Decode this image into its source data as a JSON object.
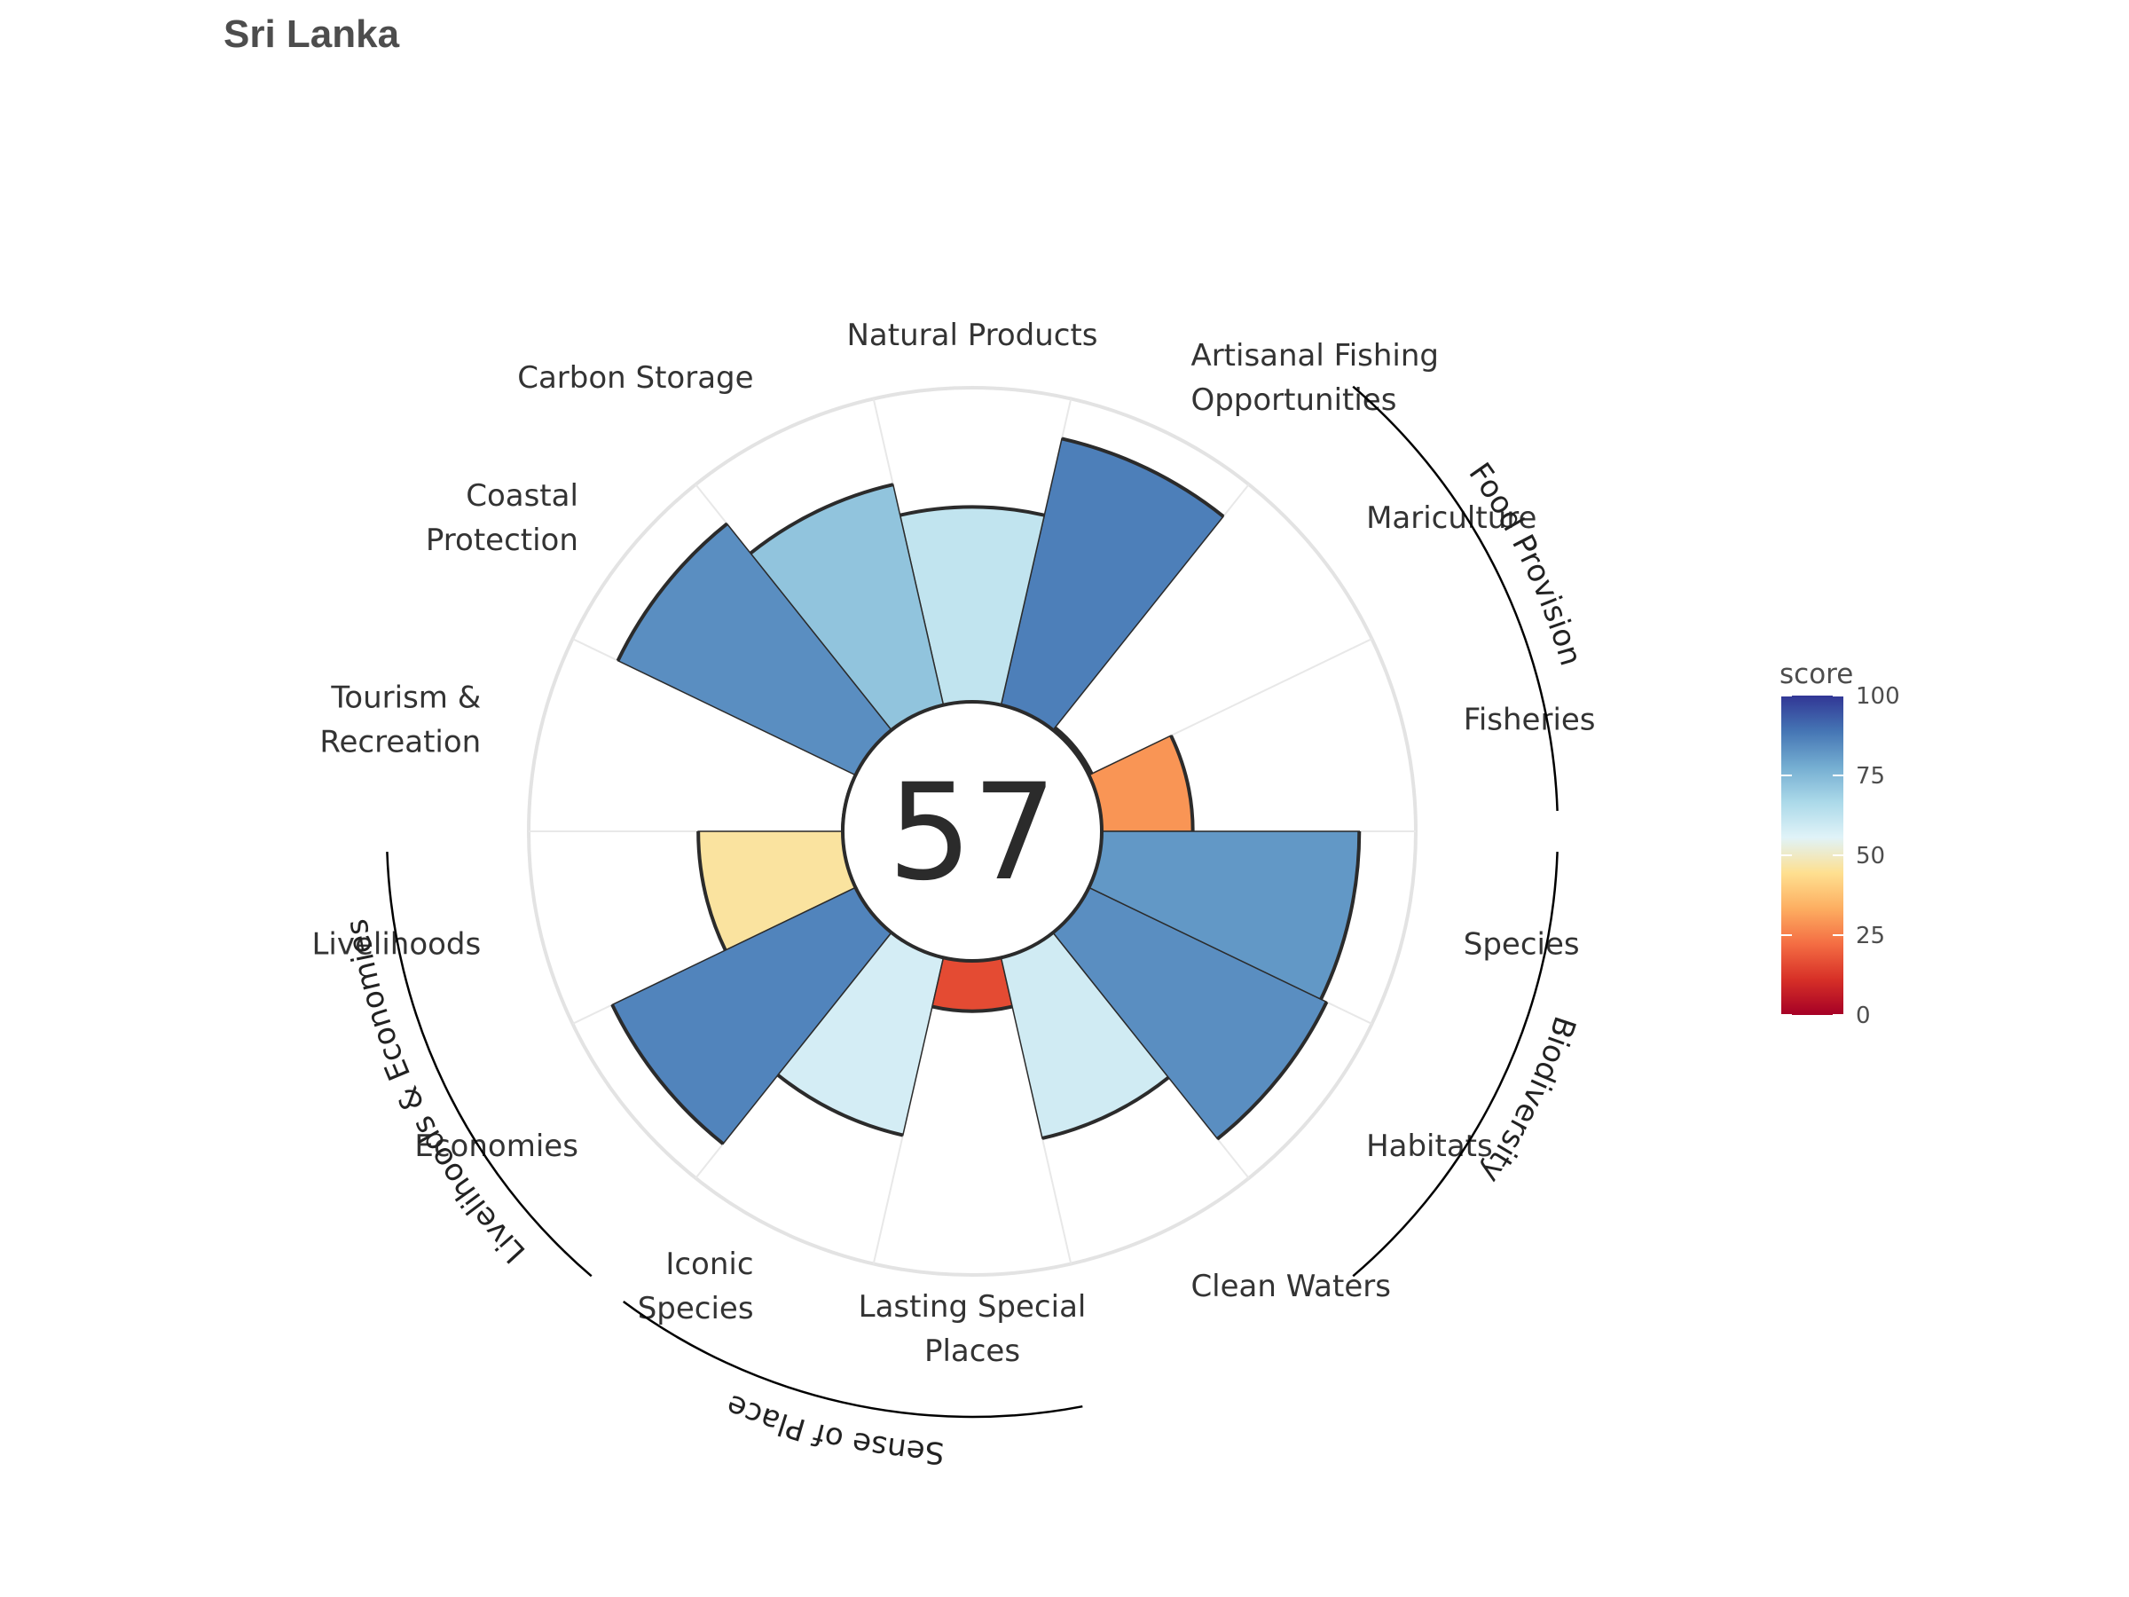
{
  "title": "Sri Lanka",
  "chart_data": {
    "type": "polar-bar",
    "title": "Sri Lanka",
    "overall_score": "57",
    "score_range": [
      0,
      100
    ],
    "grid": true,
    "goals": [
      {
        "name": "Fisheries",
        "label_lines": [
          "Fisheries"
        ],
        "score": 29,
        "group": "Food Provision"
      },
      {
        "name": "Mariculture",
        "label_lines": [
          "Mariculture"
        ],
        "score": 1,
        "group": "Food Provision"
      },
      {
        "name": "Artisanal Fishing Opportunities",
        "label_lines": [
          "Artisanal Fishing",
          "Opportunities"
        ],
        "score": 87,
        "group": ""
      },
      {
        "name": "Natural Products",
        "label_lines": [
          "Natural Products"
        ],
        "score": 62,
        "group": ""
      },
      {
        "name": "Carbon Storage",
        "label_lines": [
          "Carbon Storage"
        ],
        "score": 72,
        "group": ""
      },
      {
        "name": "Coastal Protection",
        "label_lines": [
          "Coastal",
          "Protection"
        ],
        "score": 84,
        "group": ""
      },
      {
        "name": "Tourism & Recreation",
        "label_lines": [
          "Tourism &",
          "Recreation"
        ],
        "score": 0,
        "group": ""
      },
      {
        "name": "Livelihoods",
        "label_lines": [
          "Livelihoods"
        ],
        "score": 46,
        "group": "Livelihoods & Economies"
      },
      {
        "name": "Economies",
        "label_lines": [
          "Economies"
        ],
        "score": 86,
        "group": "Livelihoods & Economies"
      },
      {
        "name": "Iconic Species",
        "label_lines": [
          "Iconic",
          "Species"
        ],
        "score": 58,
        "group": "Sense of Place"
      },
      {
        "name": "Lasting Special Places",
        "label_lines": [
          "Lasting Special",
          "Places"
        ],
        "score": 16,
        "group": "Sense of Place"
      },
      {
        "name": "Clean Waters",
        "label_lines": [
          "Clean Waters"
        ],
        "score": 59,
        "group": ""
      },
      {
        "name": "Habitats",
        "label_lines": [
          "Habitats"
        ],
        "score": 84,
        "group": "Biodiversity"
      },
      {
        "name": "Species",
        "label_lines": [
          "Species"
        ],
        "score": 82,
        "group": "Biodiversity"
      }
    ],
    "groups": [
      {
        "name": "Food Provision",
        "goals": [
          "Fisheries",
          "Mariculture"
        ]
      },
      {
        "name": "Biodiversity",
        "goals": [
          "Species",
          "Habitats"
        ]
      },
      {
        "name": "Sense of Place",
        "goals": [
          "Iconic Species",
          "Lasting Special Places"
        ]
      },
      {
        "name": "Livelihoods & Economies",
        "goals": [
          "Livelihoods",
          "Economies"
        ]
      }
    ],
    "legend": {
      "title": "score",
      "position": "right",
      "ticks": [
        "0",
        "25",
        "50",
        "75",
        "100"
      ],
      "colors": [
        "#a50026",
        "#d73027",
        "#f46d43",
        "#fdae61",
        "#fee090",
        "#e0f3f8",
        "#abd9e9",
        "#74add1",
        "#4575b4",
        "#313695"
      ]
    }
  }
}
